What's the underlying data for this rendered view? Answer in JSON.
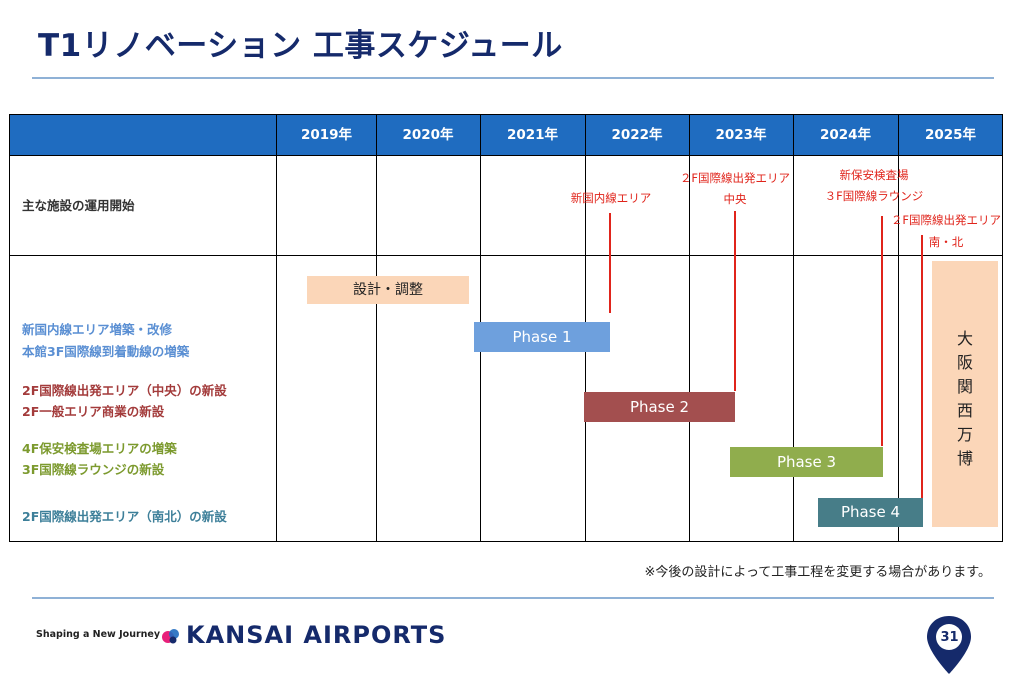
{
  "page": {
    "title": "T1リノベーション 工事スケジュール",
    "note": "※今後の設計によって工事工程を変更する場合があります。",
    "page_number": "31"
  },
  "footer": {
    "tagline": "Shaping a New Journey",
    "brand": "KANSAI AIRPORTS",
    "brand_colors": [
      "#e8207a",
      "#1f6cc0",
      "#152a6b"
    ]
  },
  "schedule": {
    "years": [
      "2019年",
      "2020年",
      "2021年",
      "2022年",
      "2023年",
      "2024年",
      "2025年"
    ],
    "header_color": "#1f6cc0",
    "rows": {
      "facility_start": "主な施設の運用開始",
      "r1_line1": "新国内線エリア増築・改修",
      "r1_line2": "本館3F国際線到着動線の増築",
      "r2_line1": "2F国際線出発エリア（中央）の新設",
      "r2_line2": "2F一般エリア商業の新設",
      "r3_line1": "4F保安検査場エリアの増築",
      "r3_line2": "3F国際線ラウンジの新設",
      "r4_line1": "2F国際線出発エリア（南北）の新設"
    },
    "milestones": {
      "m1": "新国内線エリア",
      "m2_line1": "２F国際線出発エリア",
      "m2_line2": "中央",
      "m3_line1": "新保安検査場",
      "m3_line2": "３F国際線ラウンジ",
      "m4_line1": "２F国際線出発エリア",
      "m4_line2": "南・北"
    },
    "bars": {
      "design": "設計・調整",
      "p1": "Phase 1",
      "p2": "Phase 2",
      "p3": "Phase 3",
      "p4": "Phase 4"
    },
    "expo_chars": [
      "大",
      "阪",
      "関",
      "西",
      "万",
      "博"
    ],
    "colors": {
      "phase1": "#6ea0dd",
      "phase2": "#a34f4f",
      "phase3": "#90ad4d",
      "phase4": "#477d88",
      "design": "#fbd6b8",
      "milestone": "#e0241b"
    }
  }
}
